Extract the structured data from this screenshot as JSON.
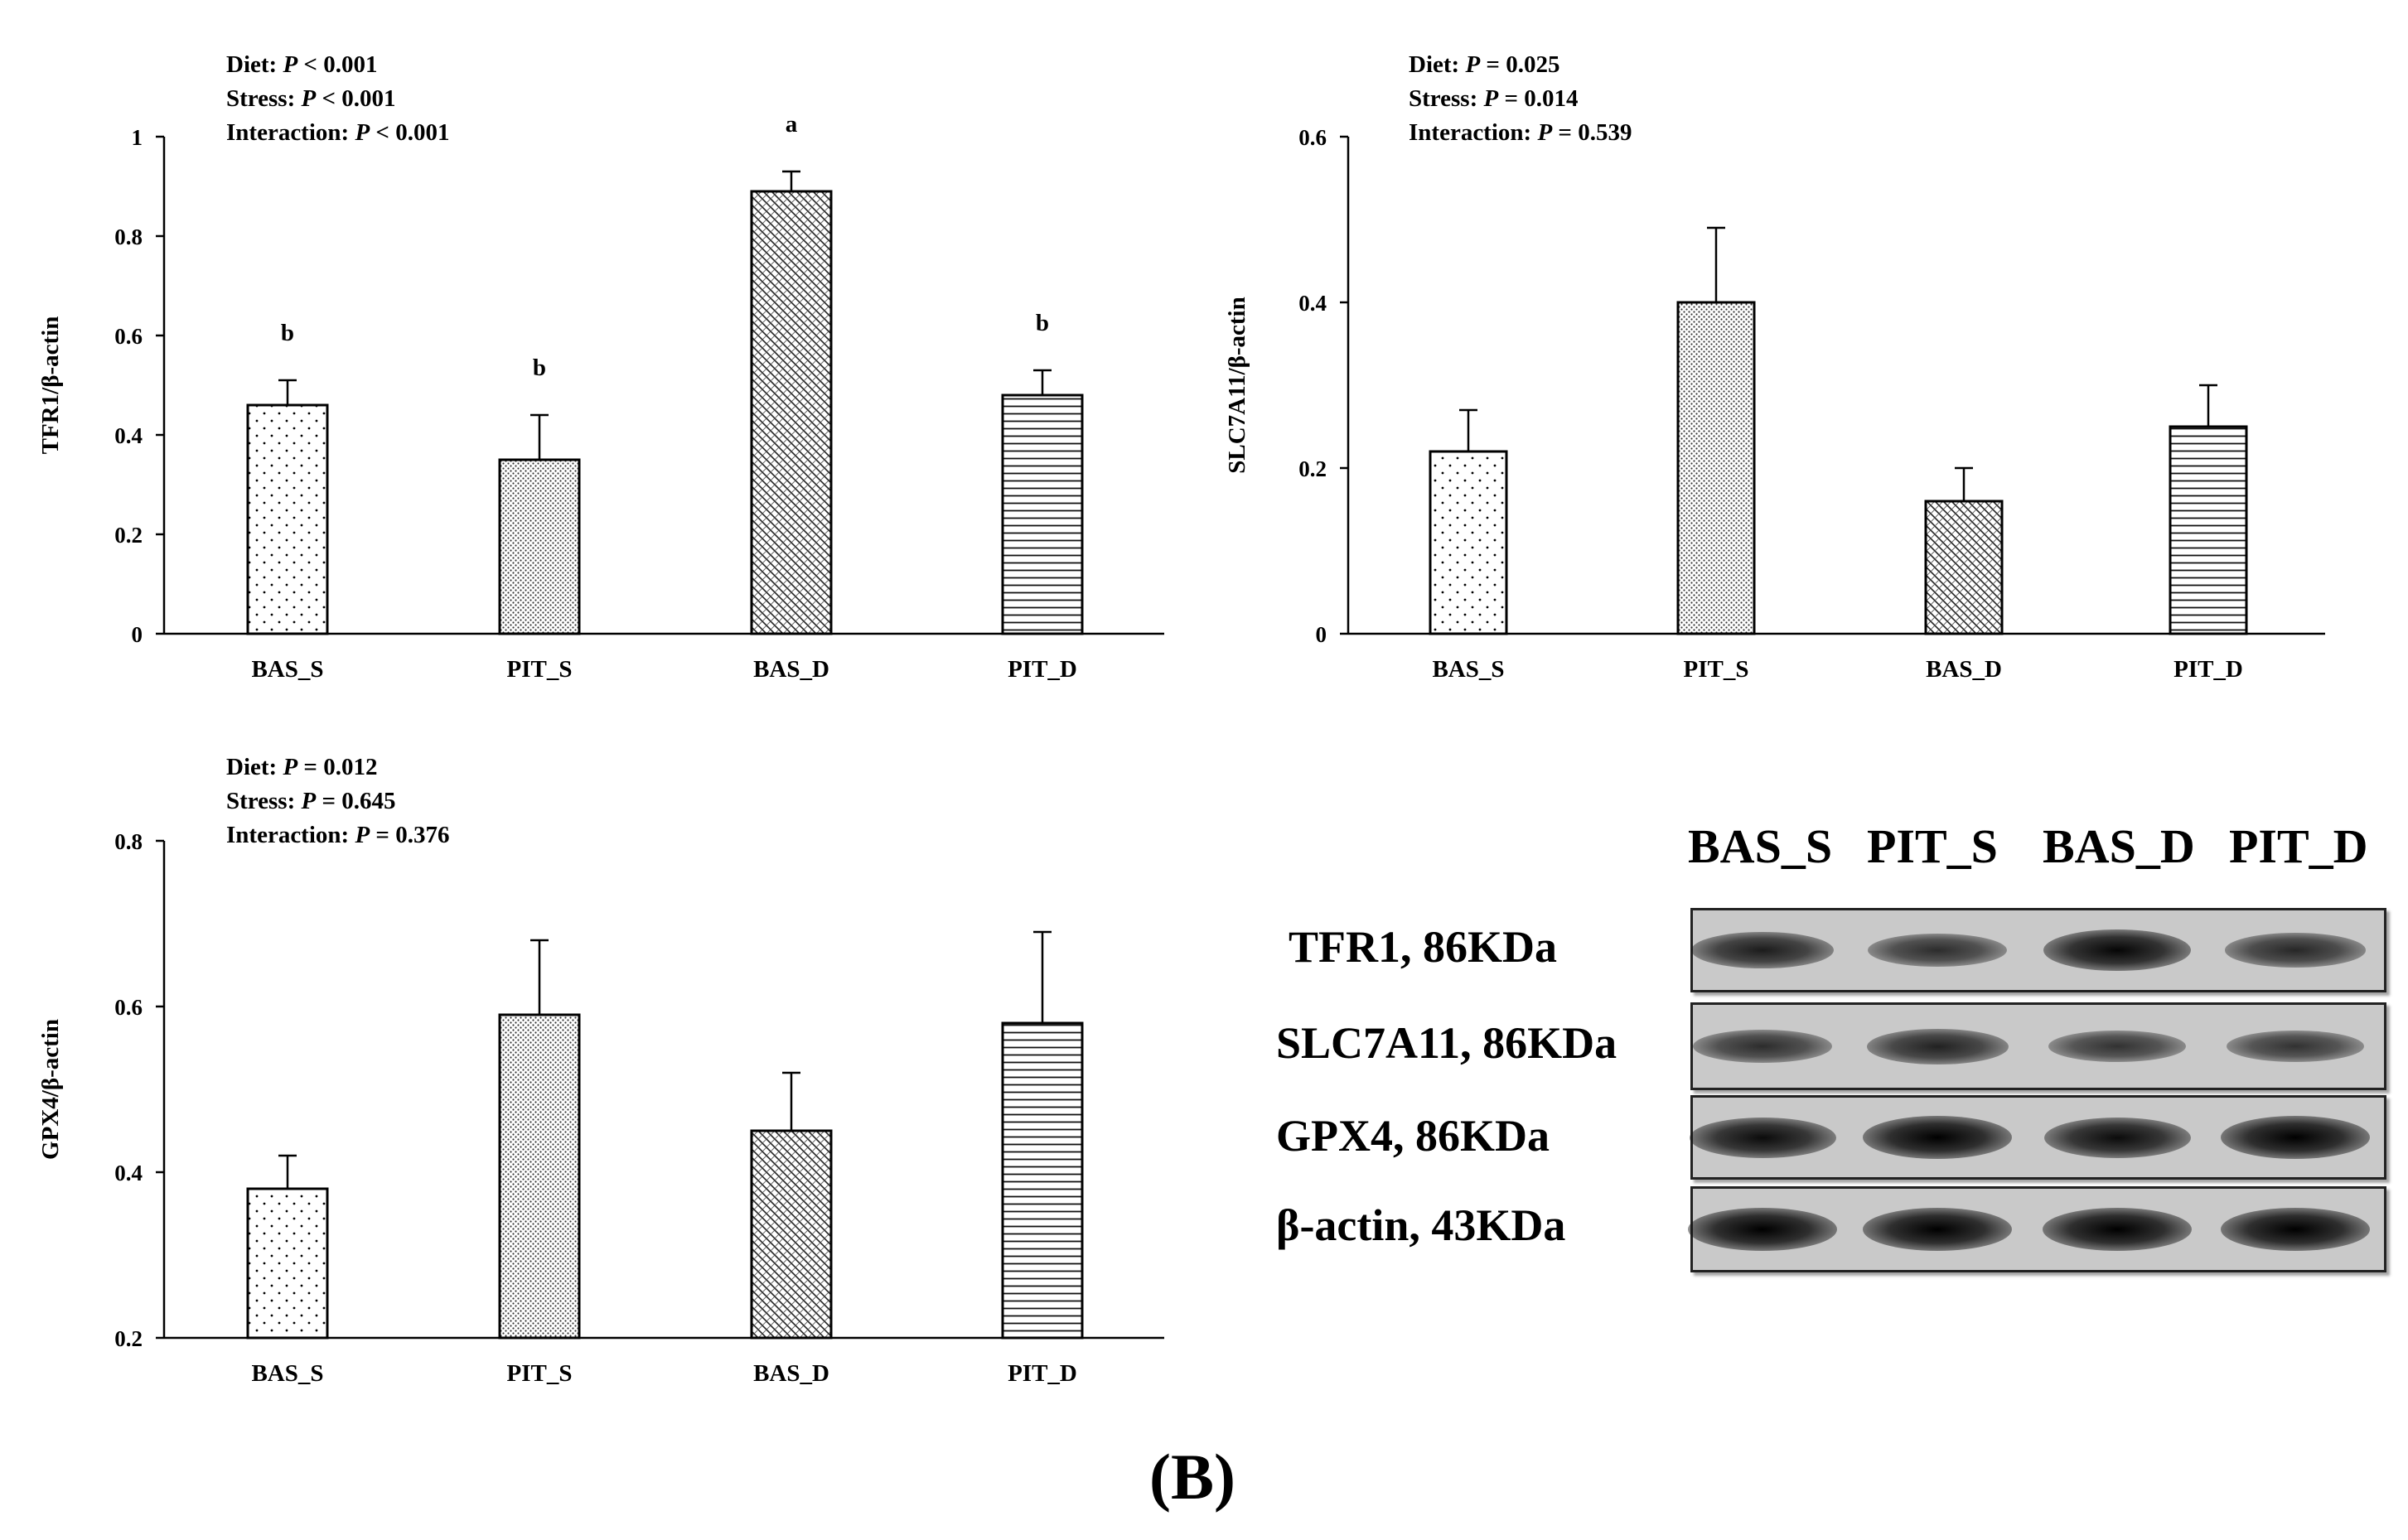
{
  "chart_data": [
    {
      "type": "bar",
      "id": "tfr1",
      "categories": [
        "BAS_S",
        "PIT_S",
        "BAS_D",
        "PIT_D"
      ],
      "values": [
        0.46,
        0.35,
        0.89,
        0.48
      ],
      "errors": [
        0.05,
        0.09,
        0.04,
        0.05
      ],
      "letters": [
        "b",
        "b",
        "a",
        "b"
      ],
      "ylabel": "TFR1/β-actin",
      "ylim": [
        0,
        1
      ],
      "yticks": [
        0,
        0.2,
        0.4,
        0.6,
        0.8,
        1
      ],
      "ytick_labels": [
        "0",
        "0.2",
        "0.4",
        "0.6",
        "0.8",
        "1"
      ],
      "patterns": [
        "dots",
        "fine-dots",
        "cross-hatch",
        "horizontal-lines"
      ],
      "stats": {
        "diet": {
          "label": "Diet:",
          "p": "P",
          "op": "<",
          "value": "0.001"
        },
        "stress": {
          "label": "Stress:",
          "p": "P",
          "op": "<",
          "value": "0.001"
        },
        "interaction": {
          "label": "Interaction:",
          "p": "P",
          "op": "<",
          "value": "0.001"
        }
      }
    },
    {
      "type": "bar",
      "id": "slc7a11",
      "categories": [
        "BAS_S",
        "PIT_S",
        "BAS_D",
        "PIT_D"
      ],
      "values": [
        0.22,
        0.4,
        0.16,
        0.25
      ],
      "errors": [
        0.05,
        0.09,
        0.04,
        0.05
      ],
      "letters": [
        "",
        "",
        "",
        ""
      ],
      "ylabel": "SLC7A11/β-actin",
      "ylim": [
        0,
        0.6
      ],
      "yticks": [
        0,
        0.2,
        0.4,
        0.6
      ],
      "ytick_labels": [
        "0",
        "0.2",
        "0.4",
        "0.6"
      ],
      "patterns": [
        "dots",
        "fine-dots",
        "cross-hatch",
        "horizontal-lines"
      ],
      "stats": {
        "diet": {
          "label": "Diet:",
          "p": "P",
          "op": "=",
          "value": "0.025"
        },
        "stress": {
          "label": "Stress:",
          "p": "P",
          "op": "=",
          "value": "0.014"
        },
        "interaction": {
          "label": "Interaction:",
          "p": "P",
          "op": "=",
          "value": "0.539"
        }
      }
    },
    {
      "type": "bar",
      "id": "gpx4",
      "categories": [
        "BAS_S",
        "PIT_S",
        "BAS_D",
        "PIT_D"
      ],
      "values": [
        0.38,
        0.59,
        0.45,
        0.58
      ],
      "errors": [
        0.04,
        0.09,
        0.07,
        0.11
      ],
      "letters": [
        "",
        "",
        "",
        ""
      ],
      "ylabel": "GPX4/β-actin",
      "ylim": [
        0.2,
        0.8
      ],
      "yticks": [
        0.2,
        0.4,
        0.6,
        0.8
      ],
      "ytick_labels": [
        "0.2",
        "0.4",
        "0.6",
        "0.8"
      ],
      "patterns": [
        "dots",
        "fine-dots",
        "cross-hatch",
        "horizontal-lines"
      ],
      "stats": {
        "diet": {
          "label": "Diet:",
          "p": "P",
          "op": "=",
          "value": "0.012"
        },
        "stress": {
          "label": "Stress:",
          "p": "P",
          "op": "=",
          "value": "0.645"
        },
        "interaction": {
          "label": "Interaction:",
          "p": "P",
          "op": "=",
          "value": "0.376"
        }
      }
    }
  ],
  "western_blot": {
    "lanes": [
      "BAS_S",
      "PIT_S",
      "BAS_D",
      "PIT_D"
    ],
    "rows": [
      {
        "label": "TFR1, 86KDa",
        "band_intensity": [
          0.75,
          0.6,
          0.95,
          0.65
        ]
      },
      {
        "label": "SLC7A11, 86KDa",
        "band_intensity": [
          0.6,
          0.7,
          0.55,
          0.55
        ]
      },
      {
        "label": "GPX4, 86KDa",
        "band_intensity": [
          0.9,
          1.0,
          0.9,
          1.0
        ]
      },
      {
        "label": "β-actin, 43KDa",
        "band_intensity": [
          1.0,
          1.0,
          1.0,
          1.0
        ]
      }
    ]
  },
  "panel_label": "(B)"
}
